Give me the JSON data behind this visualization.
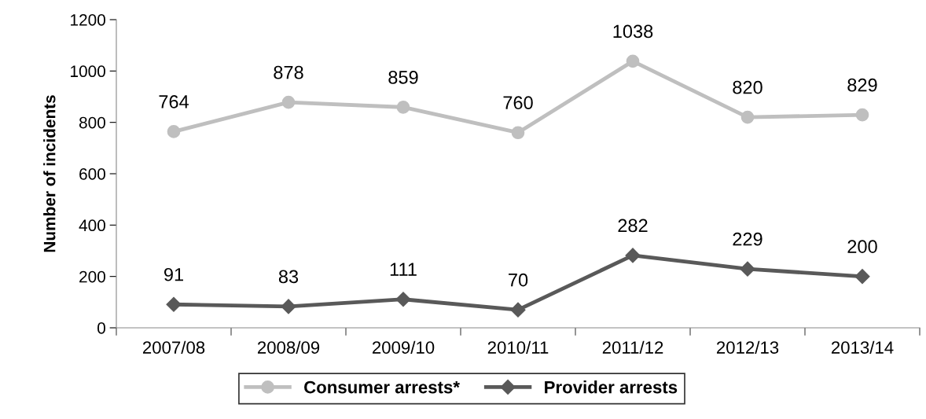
{
  "chart_data": {
    "type": "line",
    "ylabel": "Number of incidents",
    "categories": [
      "2007/08",
      "2008/09",
      "2009/10",
      "2010/11",
      "2011/12",
      "2012/13",
      "2013/14"
    ],
    "series": [
      {
        "name": "Consumer arrests*",
        "color": "#bfbfbf",
        "marker": "circle",
        "values": [
          764,
          878,
          859,
          760,
          1038,
          820,
          829
        ]
      },
      {
        "name": "Provider arrests",
        "color": "#595959",
        "marker": "diamond",
        "values": [
          91,
          83,
          111,
          70,
          282,
          229,
          200
        ]
      }
    ],
    "ylim": [
      0,
      1200
    ],
    "yticks": [
      0,
      200,
      400,
      600,
      800,
      1000,
      1200
    ],
    "grid": false,
    "legend": "bottom",
    "data_labels": true
  }
}
